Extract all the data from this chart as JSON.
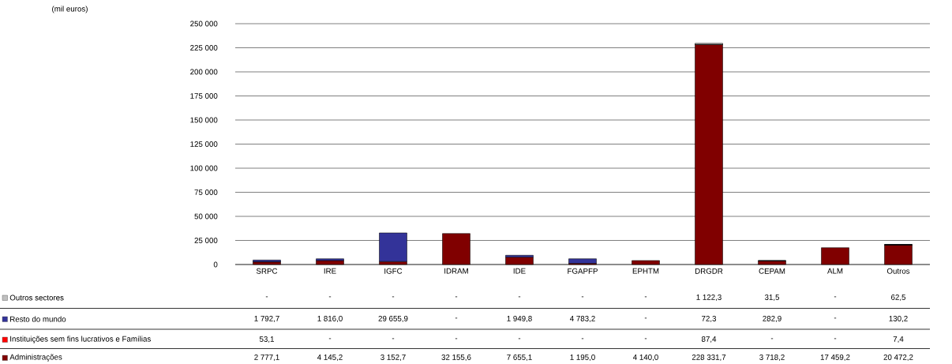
{
  "chart_data": {
    "type": "bar",
    "stacked": true,
    "annotations": [
      "(mil euros)"
    ],
    "categories": [
      "SRPC",
      "IRE",
      "IGFC",
      "IDRAM",
      "IDE",
      "FGAPFP",
      "EPHTM",
      "DRGDR",
      "CEPAM",
      "ALM",
      "Outros"
    ],
    "series": [
      {
        "name": "Administrações",
        "color": "#800000",
        "values": [
          2777.1,
          4145.2,
          3152.7,
          32155.6,
          7655.1,
          1195.0,
          4140.0,
          228331.7,
          3718.2,
          17459.2,
          20472.2
        ],
        "value_labels": [
          "2 777,1",
          "4 145,2",
          "3 152,7",
          "32 155,6",
          "7 655,1",
          "1 195,0",
          "4 140,0",
          "228 331,7",
          "3 718,2",
          "17 459,2",
          "20 472,2"
        ]
      },
      {
        "name": "Instituições sem fins lucrativos e Famílias",
        "color": "#ff0000",
        "values": [
          53.1,
          null,
          null,
          null,
          null,
          null,
          null,
          87.4,
          null,
          null,
          7.4
        ],
        "value_labels": [
          "53,1",
          "-",
          "-",
          "-",
          "-",
          "-",
          "-",
          "87,4",
          "-",
          "-",
          "7,4"
        ]
      },
      {
        "name": "Resto do mundo",
        "color": "#333399",
        "values": [
          1792.7,
          1816.0,
          29655.9,
          null,
          1949.8,
          4783.2,
          null,
          72.3,
          282.9,
          null,
          130.2
        ],
        "value_labels": [
          "1 792,7",
          "1 816,0",
          "29 655,9",
          "-",
          "1 949,8",
          "4 783,2",
          "-",
          "72,3",
          "282,9",
          "-",
          "130,2"
        ]
      },
      {
        "name": "Outros sectores",
        "color": "#c0c0c0",
        "values": [
          null,
          null,
          null,
          null,
          null,
          null,
          null,
          1122.3,
          31.5,
          null,
          62.5
        ],
        "value_labels": [
          "-",
          "-",
          "-",
          "-",
          "-",
          "-",
          "-",
          "1 122,3",
          "31,5",
          "-",
          "62,5"
        ]
      }
    ],
    "ylim": [
      0,
      250000
    ],
    "yticks": [
      0,
      {
        "value": 25000,
        "label": "25 000"
      },
      {
        "value": 50000,
        "label": "50 000"
      },
      {
        "value": 75000,
        "label": "75 000"
      },
      {
        "value": 100000,
        "label": "100 000"
      },
      {
        "value": 125000,
        "label": "125 000"
      },
      {
        "value": 150000,
        "label": "150 000"
      },
      {
        "value": 175000,
        "label": "175 000"
      },
      {
        "value": 200000,
        "label": "200 000"
      },
      {
        "value": 225000,
        "label": "225 000"
      },
      {
        "value": 250000,
        "label": "250 000"
      }
    ],
    "grid": "y",
    "legend": "bottom"
  }
}
